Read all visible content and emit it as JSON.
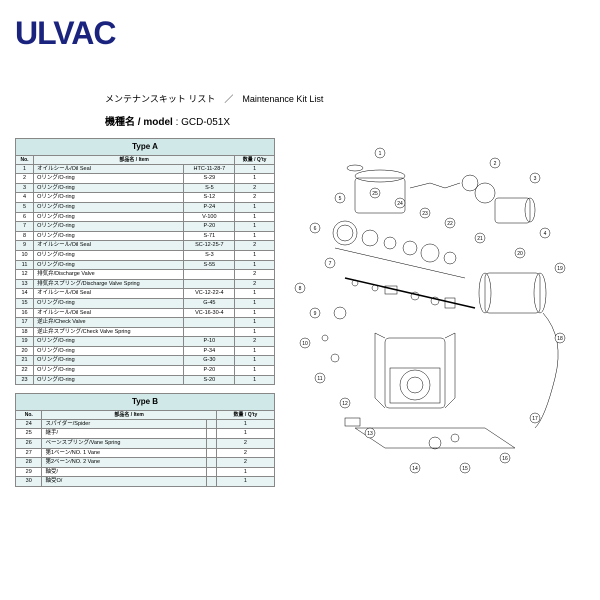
{
  "logo": "ULVAC",
  "title": "メンテナンスキット リスト　／　Maintenance Kit List",
  "model_label": "機種名 / model",
  "model_value": ": GCD-051X",
  "typeA": {
    "header": "Type A",
    "cols": [
      "No.",
      "部品名 / Item",
      "",
      "数量 / Q'ty"
    ],
    "rows": [
      [
        "1",
        "オイルシール/Oil Seal",
        "HTC-11-28-7",
        "1"
      ],
      [
        "2",
        "Oリング/O-ring",
        "S-29",
        "1"
      ],
      [
        "3",
        "Oリング/O-ring",
        "S-5",
        "2"
      ],
      [
        "4",
        "Oリング/O-ring",
        "S-12",
        "2"
      ],
      [
        "5",
        "Oリング/O-ring",
        "P-24",
        "1"
      ],
      [
        "6",
        "Oリング/O-ring",
        "V-100",
        "1"
      ],
      [
        "7",
        "Oリング/O-ring",
        "P-20",
        "1"
      ],
      [
        "8",
        "Oリング/O-ring",
        "S-71",
        "1"
      ],
      [
        "9",
        "オイルシール/Oil Seal",
        "SC-12-25-7",
        "2"
      ],
      [
        "10",
        "Oリング/O-ring",
        "S-3",
        "1"
      ],
      [
        "11",
        "Oリング/O-ring",
        "S-55",
        "1"
      ],
      [
        "12",
        "排気弁/Discharge Valve",
        "",
        "2"
      ],
      [
        "13",
        "排気弁スプリング/Discharge Valve Spring",
        "",
        "2"
      ],
      [
        "14",
        "オイルシール/Oil Seal",
        "VC-12-22-4",
        "1"
      ],
      [
        "15",
        "Oリング/O-ring",
        "G-45",
        "1"
      ],
      [
        "16",
        "オイルシール/Oil Seal",
        "VC-16-30-4",
        "1"
      ],
      [
        "17",
        "逆止弁/Check Valve",
        "",
        "1"
      ],
      [
        "18",
        "逆止弁スプリング/Check Valve Spring",
        "",
        "1"
      ],
      [
        "19",
        "Oリング/O-ring",
        "P-10",
        "2"
      ],
      [
        "20",
        "Oリング/O-ring",
        "P-34",
        "1"
      ],
      [
        "21",
        "Oリング/O-ring",
        "G-30",
        "1"
      ],
      [
        "22",
        "Oリング/O-ring",
        "P-20",
        "1"
      ],
      [
        "23",
        "Oリング/O-ring",
        "S-20",
        "1"
      ]
    ]
  },
  "typeB": {
    "header": "Type B",
    "cols": [
      "No.",
      "部品名 / Item",
      "",
      "数量 / Q'ty"
    ],
    "rows": [
      [
        "24",
        "スパイダー/Spider",
        "",
        "1"
      ],
      [
        "25",
        "継手/",
        "",
        "1"
      ],
      [
        "26",
        "ベーンスプリング/Vane Spring",
        "",
        "2"
      ],
      [
        "27",
        "第1ベーン/NO. 1 Vane",
        "",
        "2"
      ],
      [
        "28",
        "第2ベーン/NO. 2 Vane",
        "",
        "2"
      ],
      [
        "29",
        "軸受/",
        "",
        "1"
      ],
      [
        "30",
        "軸受O/",
        "",
        "1"
      ]
    ]
  },
  "callouts": [
    "1",
    "2",
    "3",
    "4",
    "5",
    "6",
    "7",
    "8",
    "9",
    "10",
    "11",
    "12",
    "13",
    "14",
    "15",
    "16",
    "17",
    "18",
    "19",
    "20",
    "21",
    "22",
    "23",
    "24",
    "25"
  ],
  "styling": {
    "logo_color": "#1a237e",
    "header_bg": "#d0e8e8",
    "alt_bg": "#e8f4f4",
    "border": "#888"
  }
}
